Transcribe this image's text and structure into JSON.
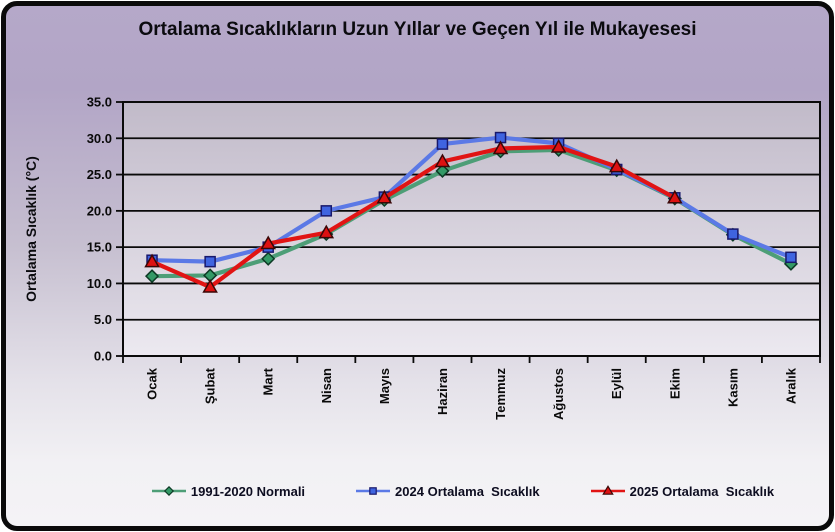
{
  "chart_data": {
    "type": "line",
    "title": "Ortalama Sıcaklıkların Uzun Yıllar ve Geçen Yıl ile Mukayesesi",
    "ylabel": "Ortalama Sıcaklık (°C)",
    "ylim": [
      0,
      35
    ],
    "ytick_step": 5,
    "ytick_labels": [
      "35.0",
      "30.0",
      "25.0",
      "20.0",
      "15.0",
      "10.0",
      "5.0",
      "0.0"
    ],
    "grid": "horizontal-only",
    "legend_position": "bottom",
    "plot_colors": {
      "gridline": "#0a0a0a",
      "plot_bg_top": "#c1bac9",
      "plot_bg_bottom": "#ece9f0",
      "frame_bg_top": "#b5a8c9",
      "frame_bg_bottom": "#f4f3f6"
    },
    "categories": [
      "Ocak",
      "Şubat",
      "Mart",
      "Nisan",
      "Mayıs",
      "Haziran",
      "Temmuz",
      "Ağustos",
      "Eylül",
      "Ekim",
      "Kasım",
      "Aralık"
    ],
    "series": [
      {
        "name": "1991-2020 Normali",
        "marker": "diamond",
        "line_color": "#4d9e77",
        "marker_color": "#339966",
        "marker_edge": "#0d3a25",
        "values": [
          11.0,
          11.1,
          13.4,
          16.8,
          21.5,
          25.5,
          28.2,
          28.4,
          25.6,
          21.7,
          16.7,
          12.7
        ]
      },
      {
        "name": "2024 Ortalama  Sıcaklık",
        "marker": "square",
        "line_color": "#5b79e6",
        "marker_color": "#3f64e0",
        "marker_edge": "#18186b",
        "values": [
          13.2,
          13.0,
          15.0,
          20.0,
          21.9,
          29.2,
          30.1,
          29.3,
          25.7,
          21.8,
          16.8,
          13.6
        ]
      },
      {
        "name": "2025 Ortalama  Sıcaklık",
        "marker": "triangle",
        "line_color": "#e11414",
        "marker_color": "#dd1111",
        "marker_edge": "#3a0707",
        "values": [
          13.0,
          9.5,
          15.5,
          17.0,
          21.8,
          26.8,
          28.6,
          28.8,
          26.1,
          21.8,
          null,
          null
        ]
      }
    ]
  }
}
